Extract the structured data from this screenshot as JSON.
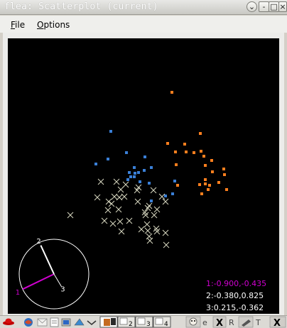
{
  "window": {
    "title": "flea: Scatterplot (current)"
  },
  "menu": {
    "file": "File",
    "options": "Options"
  },
  "colors": {
    "orange": "#ff7f1e",
    "blue": "#3a7fd6",
    "cross": "#d7d7c0",
    "axis1": "#d000d0",
    "axis2": "#ffffff",
    "axis3": "#ffffff"
  },
  "axis_readout": [
    "1:-0.900,-0.435",
    "2:-0.380,0.825",
    "3:0.215,-0.362"
  ],
  "axis_labels": [
    "1",
    "2",
    "3"
  ],
  "chart_data": {
    "type": "scatter",
    "series": [
      {
        "marker": "square",
        "color": "orange",
        "points": [
          [
            231,
            76
          ],
          [
            271,
            134
          ],
          [
            225,
            148
          ],
          [
            249,
            149
          ],
          [
            236,
            160
          ],
          [
            251,
            160
          ],
          [
            262,
            161
          ],
          [
            272,
            159
          ],
          [
            276,
            166
          ],
          [
            287,
            172
          ],
          [
            278,
            179
          ],
          [
            237,
            178
          ],
          [
            288,
            188
          ],
          [
            304,
            184
          ],
          [
            305,
            192
          ],
          [
            278,
            199
          ],
          [
            278,
            205
          ],
          [
            284,
            207
          ],
          [
            297,
            203
          ],
          [
            270,
            206
          ],
          [
            282,
            213
          ],
          [
            308,
            213
          ],
          [
            273,
            219
          ],
          [
            239,
            207
          ]
        ]
      },
      {
        "marker": "square",
        "color": "blue",
        "points": [
          [
            145,
            131
          ],
          [
            167,
            161
          ],
          [
            193,
            167
          ],
          [
            141,
            170
          ],
          [
            124,
            177
          ],
          [
            202,
            182
          ],
          [
            178,
            182
          ],
          [
            184,
            189
          ],
          [
            179,
            190
          ],
          [
            171,
            189
          ],
          [
            192,
            186
          ],
          [
            173,
            195
          ],
          [
            178,
            195
          ],
          [
            169,
            199
          ],
          [
            186,
            202
          ],
          [
            199,
            204
          ],
          [
            235,
            201
          ],
          [
            232,
            219
          ],
          [
            202,
            229
          ],
          [
            222,
            222
          ]
        ]
      },
      {
        "marker": "x",
        "color": "cross",
        "points": [
          [
            131,
            202
          ],
          [
            153,
            202
          ],
          [
            166,
            206
          ],
          [
            184,
            210
          ],
          [
            159,
            213
          ],
          [
            182,
            214
          ],
          [
            205,
            214
          ],
          [
            126,
            224
          ],
          [
            150,
            223
          ],
          [
            157,
            224
          ],
          [
            164,
            223
          ],
          [
            142,
            230
          ],
          [
            146,
            233
          ],
          [
            183,
            230
          ],
          [
            199,
            236
          ],
          [
            217,
            223
          ],
          [
            222,
            230
          ],
          [
            197,
            239
          ],
          [
            210,
            241
          ],
          [
            141,
            242
          ],
          [
            156,
            241
          ],
          [
            193,
            245
          ],
          [
            88,
            249
          ],
          [
            194,
            249
          ],
          [
            206,
            249
          ],
          [
            136,
            257
          ],
          [
            158,
            258
          ],
          [
            171,
            257
          ],
          [
            148,
            261
          ],
          [
            196,
            262
          ],
          [
            209,
            268
          ],
          [
            160,
            272
          ],
          [
            188,
            269
          ],
          [
            197,
            271
          ],
          [
            210,
            272
          ],
          [
            222,
            274
          ],
          [
            199,
            279
          ],
          [
            200,
            285
          ],
          [
            223,
            291
          ]
        ]
      }
    ],
    "axes": [
      {
        "label": "1",
        "x": -0.9,
        "y": -0.435
      },
      {
        "label": "2",
        "x": -0.38,
        "y": 0.825
      },
      {
        "label": "3",
        "x": 0.215,
        "y": -0.362
      }
    ]
  },
  "taskbar": {
    "items": [
      "redhat-icon",
      "browser-icon",
      "mail-icon",
      "editor-icon",
      "files-icon",
      "network-icon",
      "arrow-icon",
      "workspace-1",
      "workspace-2",
      "workspace-3",
      "workspace-4",
      "tool-a-icon",
      "tool-e-icon",
      "tool-x-icon",
      "tool-r-icon",
      "tool-pen-icon",
      "tool-t-icon",
      "tool-close-icon"
    ]
  }
}
